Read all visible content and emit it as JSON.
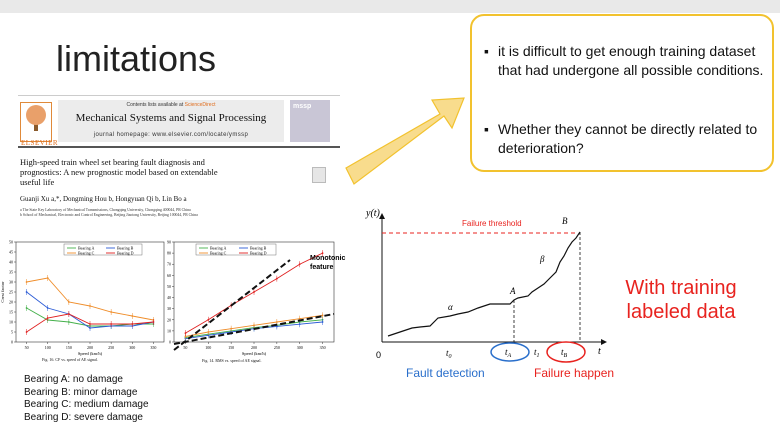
{
  "slide": {
    "title": "limitations",
    "bullets": [
      "it is difficult to get enough training dataset that had undergone all possible conditions.",
      "Whether they cannot be directly related to deterioration?"
    ],
    "bullet_glyph": "▪",
    "accent_color": "#f2c22e",
    "red_color": "#e8231f",
    "blue_color": "#2a6fcb",
    "right_label_line1": "With training",
    "right_label_line2": "labeled data",
    "fault_detection": "Fault detection",
    "failure_happen": "Failure happen"
  },
  "paper": {
    "contents_prefix": "Contents lists available at ",
    "contents_link": "ScienceDirect",
    "journal": "Mechanical Systems and Signal Processing",
    "homepage": "journal homepage: www.elsevier.com/locate/ymssp",
    "publisher": "ELSEVIER",
    "cover_label": "mssp",
    "article_title_1": "High-speed train wheel set bearing fault diagnosis and",
    "article_title_2": "prognostics: A new prognostic model based on extendable",
    "article_title_3": "useful life",
    "authors": "Guanji Xu a,*, Dongming Hou b, Hongyuan Qi b, Lin Bo a",
    "affiliation_a": "a The State Key Laboratory of Mechanical Transmissions, Chongqing University, Chongqing 400044, PR China",
    "affiliation_b": "b School of Mechanical, Electronic and Control Engineering, Beijing Jiaotong University, Beijing 100044, PR China",
    "fig16_caption": "Fig. 16. CF vs. speed of AE signal.",
    "fig14_caption": "Fig. 14. RMS vs. speed of AE signal.",
    "speed_label": "Speed (km/h)",
    "crest_label": "Crest factor",
    "monotonic_1": "Monotonic",
    "monotonic_2": "feature"
  },
  "bearings": [
    "Bearing A: no damage",
    "Bearing B: minor damage",
    "Bearing C: medium damage",
    "Bearing D: severe damage"
  ],
  "diagram": {
    "y_axis": "y(t)",
    "t_axis": "t",
    "origin": "0",
    "threshold_label": "Failure threshold",
    "point_A": "A",
    "point_B": "B",
    "alpha": "α",
    "beta": "β",
    "t0": "t",
    "t0_sub": "0",
    "tA": "t",
    "tA_sub": "A",
    "t1": "t",
    "t1_sub": "1",
    "tB": "t",
    "tB_sub": "B"
  },
  "chart_data": [
    {
      "type": "line",
      "caption": "Fig. 16. CF vs. speed of AE signal.",
      "xlabel": "Speed (km/h)",
      "ylabel": "Crest factor",
      "x": [
        50,
        100,
        150,
        200,
        250,
        300,
        350
      ],
      "ylim": [
        0,
        50
      ],
      "yticks": [
        0,
        5,
        10,
        15,
        20,
        25,
        30,
        35,
        40,
        45,
        50
      ],
      "series": [
        {
          "name": "Bearing A",
          "color": "#44b04a",
          "values": [
            17,
            11,
            10,
            8,
            8,
            9,
            9
          ]
        },
        {
          "name": "Bearing B",
          "color": "#2b5bd6",
          "values": [
            25,
            17,
            14,
            7,
            8,
            8,
            10
          ]
        },
        {
          "name": "Bearing C",
          "color": "#ef8d2a",
          "values": [
            30,
            32,
            20,
            18,
            15,
            13,
            11
          ]
        },
        {
          "name": "Bearing D",
          "color": "#e02020",
          "values": [
            5,
            12,
            14,
            9,
            9,
            9,
            10
          ]
        }
      ]
    },
    {
      "type": "line",
      "caption": "Fig. 14. RMS vs. speed of AE signal.",
      "xlabel": "Speed (km/h)",
      "x": [
        50,
        100,
        150,
        200,
        250,
        300,
        350
      ],
      "ylim": [
        0,
        90
      ],
      "yticks": [
        0,
        10,
        20,
        30,
        40,
        50,
        60,
        70,
        80,
        90
      ],
      "series": [
        {
          "name": "Bearing A",
          "color": "#44b04a",
          "values": [
            4,
            7,
            10,
            13,
            15,
            18,
            20
          ]
        },
        {
          "name": "Bearing B",
          "color": "#2b5bd6",
          "values": [
            3,
            6,
            9,
            12,
            14,
            16,
            18
          ]
        },
        {
          "name": "Bearing C",
          "color": "#ef8d2a",
          "values": [
            5,
            9,
            12,
            15,
            18,
            21,
            24
          ]
        },
        {
          "name": "Bearing D",
          "color": "#e02020",
          "values": [
            8,
            20,
            33,
            45,
            57,
            70,
            80
          ]
        }
      ]
    }
  ]
}
